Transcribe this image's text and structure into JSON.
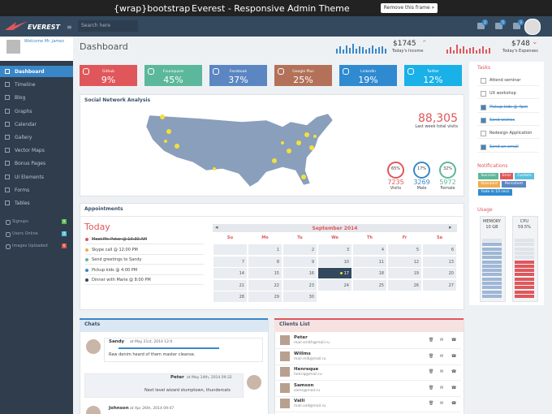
{
  "frame": {
    "brand": "{wrap}bootstrap",
    "title": "Everest - Responsive Admin Theme",
    "button": "Remove this frame »"
  },
  "header": {
    "logo": "EVEREST",
    "search": "Search here",
    "badges": [
      "2",
      "5",
      "3"
    ]
  },
  "sidebar": {
    "welcome": "Welcome Mr. James",
    "menu": [
      "Dashboard",
      "Timeline",
      "Blog",
      "Graphs",
      "Calendar",
      "Gallery",
      "Vector Maps",
      "Bonus Pages",
      "UI Elements",
      "Forms",
      "Tables"
    ],
    "stats": [
      {
        "label": "Signups",
        "badge": "8",
        "color": "#5cb85c"
      },
      {
        "label": "Users Online",
        "badge": "4",
        "color": "#5bc0de"
      },
      {
        "label": "Images Uploaded",
        "badge": "6",
        "color": "#d9534f"
      }
    ]
  },
  "page": {
    "title": "Dashboard",
    "income": {
      "amount": "$1745",
      "label": "Today's Income"
    },
    "expenses": {
      "amount": "$748",
      "label": "Today's Expenses"
    }
  },
  "cards": [
    {
      "name": "Github",
      "value": "9%",
      "color": "#e0575b"
    },
    {
      "name": "Foursquare",
      "value": "45%",
      "color": "#5cb89a"
    },
    {
      "name": "Facebook",
      "value": "37%",
      "color": "#5b86c2"
    },
    {
      "name": "Google Plus",
      "value": "25%",
      "color": "#b3715a"
    },
    {
      "name": "LinkedIn",
      "value": "19%",
      "color": "#2f8ad0"
    },
    {
      "name": "Twitter",
      "value": "12%",
      "color": "#1ab0e8"
    }
  ],
  "social": {
    "title": "Social Network Analysis",
    "total": "88,305",
    "total_label": "Last week total visits",
    "rings": [
      {
        "percent": "65%",
        "count": "7235",
        "label": "Visits",
        "color": "#e0575b"
      },
      {
        "percent": "17%",
        "count": "3269",
        "label": "Male",
        "color": "#3a87c8"
      },
      {
        "percent": "32%",
        "count": "5972",
        "label": "Female",
        "color": "#5cb89a"
      }
    ]
  },
  "appointments": {
    "title": "Appointments",
    "today": "Today",
    "items": [
      {
        "text": "Meet Mr. Peter @ 10:30 AM",
        "done": true,
        "color": "#e0575b"
      },
      {
        "text": "Skype call @ 12:00 PM",
        "done": false,
        "color": "#f0ad4e"
      },
      {
        "text": "Send greetings to Sandy",
        "done": false,
        "color": "#5cb89a"
      },
      {
        "text": "Pickup kids @ 4:00 PM",
        "done": false,
        "color": "#3a87c8"
      },
      {
        "text": "Dinner with Marie @ 8:00 PM",
        "done": false,
        "color": "#34495e"
      }
    ],
    "calendar": {
      "month": "September 2014",
      "weekdays": [
        "Su",
        "Mo",
        "Tu",
        "We",
        "Th",
        "Fr",
        "Sa"
      ],
      "selected": 17,
      "weeks": [
        [
          null,
          1,
          2,
          3,
          4,
          5,
          6
        ],
        [
          7,
          8,
          9,
          10,
          11,
          12,
          13
        ],
        [
          14,
          15,
          16,
          17,
          18,
          19,
          20
        ],
        [
          21,
          22,
          23,
          24,
          25,
          26,
          27
        ],
        [
          28,
          29,
          30
        ]
      ]
    }
  },
  "tasks": {
    "title": "Tasks",
    "items": [
      {
        "text": "Attend seminar",
        "done": false
      },
      {
        "text": "UX workshop",
        "done": false
      },
      {
        "text": "Pickup kids @ 4pm",
        "done": true
      },
      {
        "text": "Send wishes",
        "done": true
      },
      {
        "text": "Redesign Application",
        "done": false
      },
      {
        "text": "Send an email",
        "done": true
      }
    ]
  },
  "notifications": {
    "title": "Notifications",
    "buttons": [
      {
        "label": "Success",
        "color": "#5cb89a"
      },
      {
        "label": "Error",
        "color": "#e0575b"
      },
      {
        "label": "Custom",
        "color": "#5bc0de"
      },
      {
        "label": "Standard",
        "color": "#f0ad4e"
      },
      {
        "label": "Persistent",
        "color": "#5b86c2"
      },
      {
        "label": "Fade in 10 secs",
        "color": "#2f8ad0"
      }
    ]
  },
  "usage": {
    "title": "Usage",
    "meters": [
      {
        "name": "MEMORY",
        "value": "10 GB",
        "color": "#9fb7d6"
      },
      {
        "name": "CPU",
        "value": "59.5%",
        "color": "#e0575b"
      }
    ]
  },
  "chats": {
    "title": "Chats",
    "messages": [
      {
        "name": "Sandy",
        "time": "at May 21st, 2014 12:0",
        "text": "Raw denim heard of them master cleanse."
      },
      {
        "name": "Peter",
        "time": "at May 14th, 2014 09:32",
        "text": "Next level wizard stumptown, thundercats"
      },
      {
        "name": "Johnson",
        "time": "at Apr 26th, 2014 09:47",
        "text": ""
      }
    ]
  },
  "clients": {
    "title": "Clients List",
    "items": [
      {
        "name": "Peter",
        "mail": "mail.smith@mail.ru"
      },
      {
        "name": "Willms",
        "mail": "mail.mill@mail.ru"
      },
      {
        "name": "Henreque",
        "mail": "henriq@mail.ru"
      },
      {
        "name": "Samson",
        "mail": "sams@mail.ru"
      },
      {
        "name": "Valli",
        "mail": "mail.vall@mail.ru"
      }
    ]
  }
}
